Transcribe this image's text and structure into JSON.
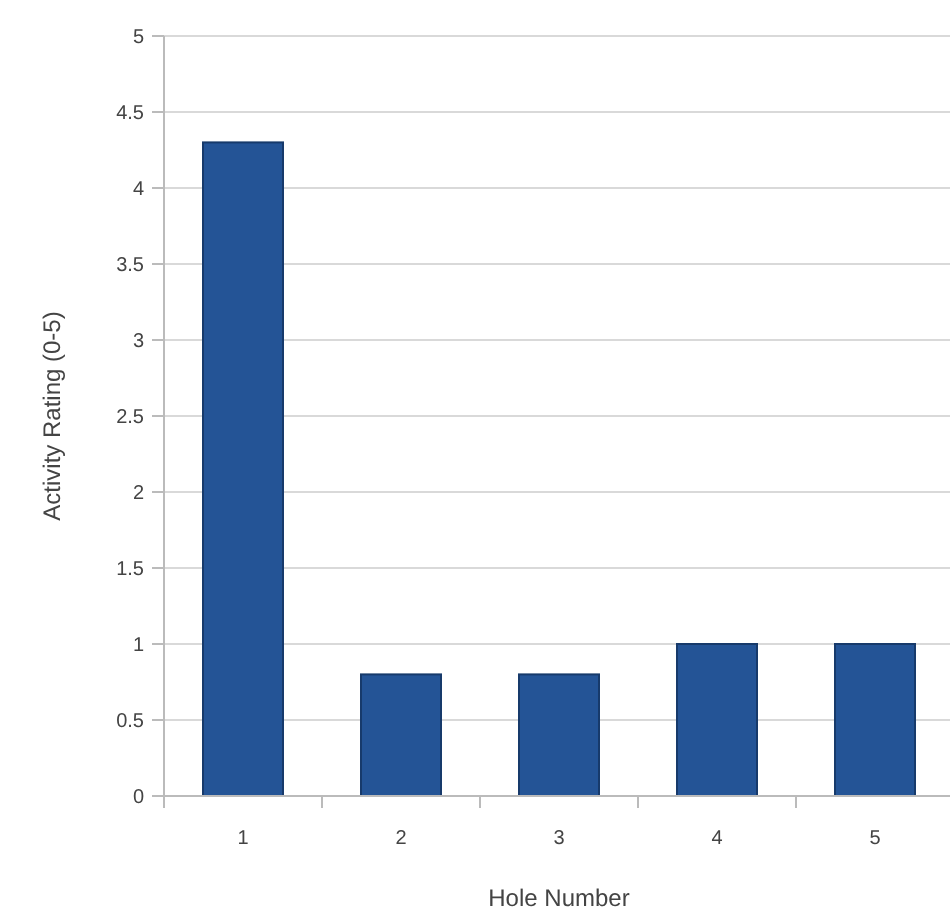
{
  "chart_data": {
    "type": "bar",
    "xlabel": "Hole Number",
    "ylabel": "Activity Rating (0-5)",
    "categories": [
      "1",
      "2",
      "3",
      "4",
      "5"
    ],
    "values": [
      4.3,
      0.8,
      0.8,
      1,
      1
    ],
    "color": "#245496",
    "ylim": [
      0,
      5
    ],
    "yticks": [
      0,
      0.5,
      1,
      1.5,
      2,
      2.5,
      3,
      3.5,
      4,
      4.5,
      5
    ],
    "grid": "y"
  }
}
